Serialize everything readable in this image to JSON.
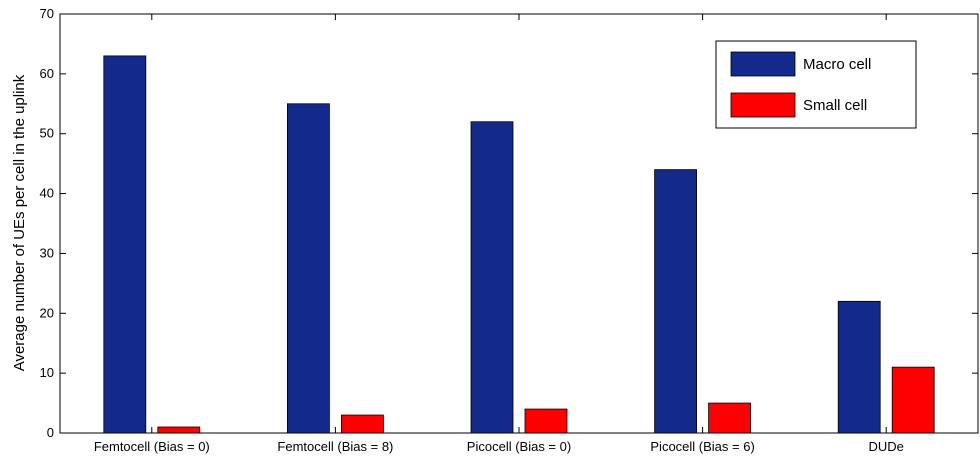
{
  "chart_data": {
    "type": "bar",
    "categories": [
      "Femtocell (Bias = 0)",
      "Femtocell (Bias = 8)",
      "Picocell (Bias = 0)",
      "Picocell (Bias = 6)",
      "DUDe"
    ],
    "series": [
      {
        "name": "Macro cell",
        "color": "#132a8c",
        "values": [
          63,
          55,
          52,
          44,
          22
        ]
      },
      {
        "name": "Small cell",
        "color": "#ff0000",
        "values": [
          1,
          3,
          4,
          5,
          11
        ]
      }
    ],
    "xlabel": "",
    "ylabel": "Average number of UEs per cell in the uplink",
    "ylim": [
      0,
      70
    ],
    "yticks": [
      0,
      10,
      20,
      30,
      40,
      50,
      60,
      70
    ],
    "grid": false,
    "legend_position": "top-right"
  }
}
